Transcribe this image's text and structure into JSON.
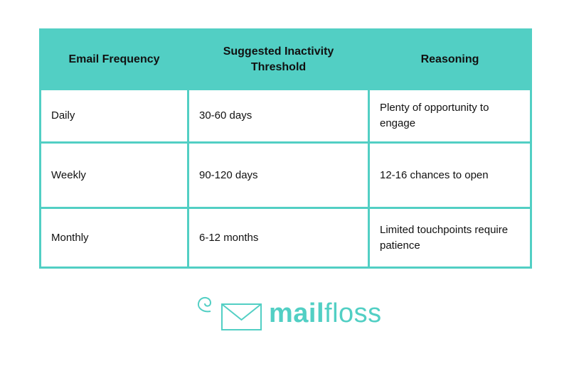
{
  "table": {
    "header": [
      "Email Frequency",
      "Suggested Inactivity Threshold",
      "Reasoning"
    ],
    "rows": [
      [
        "Daily",
        "30-60 days",
        "Plenty of opportunity to engage"
      ],
      [
        "Weekly",
        "90-120 days",
        "12-16 chances to open"
      ],
      [
        "Monthly",
        "6-12 months",
        "Limited touchpoints require patience"
      ]
    ]
  },
  "logo": {
    "parts": [
      "mail",
      "floss"
    ]
  }
}
